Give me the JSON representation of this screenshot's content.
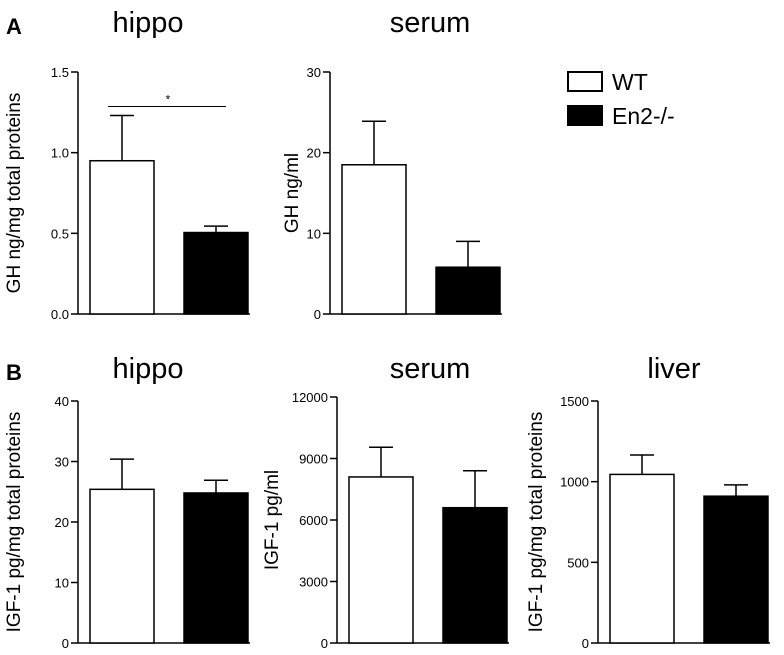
{
  "panels": {
    "a_label": "A",
    "b_label": "B"
  },
  "legend": {
    "items": [
      {
        "label": "WT",
        "fill": "#ffffff"
      },
      {
        "label": "En2-/-",
        "fill": "#000000"
      }
    ]
  },
  "colors": {
    "wt": "#ffffff",
    "ko": "#000000",
    "axis": "#000000"
  },
  "chart_data": [
    {
      "type": "bar",
      "title": "hippo",
      "ylabel": "GH ng/mg total proteins",
      "ylim": [
        0,
        1.5
      ],
      "yticks": [
        "0.0",
        "0.5",
        "1.0",
        "1.5"
      ],
      "categories": [
        "WT",
        "En2-/-"
      ],
      "values": [
        0.95,
        0.505
      ],
      "errors": [
        0.28,
        0.04
      ],
      "significance": "*"
    },
    {
      "type": "bar",
      "title": "serum",
      "ylabel": "GH ng/ml",
      "ylim": [
        0,
        30
      ],
      "yticks": [
        "0",
        "10",
        "20",
        "30"
      ],
      "categories": [
        "WT",
        "En2-/-"
      ],
      "values": [
        18.5,
        5.8
      ],
      "errors": [
        5.4,
        3.2
      ]
    },
    {
      "type": "bar",
      "title": "hippo",
      "ylabel": "IGF-1 pg/mg total proteins",
      "ylim": [
        0,
        40
      ],
      "yticks": [
        "0",
        "10",
        "20",
        "30",
        "40"
      ],
      "categories": [
        "WT",
        "En2-/-"
      ],
      "values": [
        25.4,
        24.8
      ],
      "errors": [
        5.0,
        2.1
      ]
    },
    {
      "type": "bar",
      "title": "serum",
      "ylabel": "IGF-1 pg/ml",
      "ylim": [
        0,
        12000
      ],
      "yticks": [
        "0",
        "3000",
        "6000",
        "9000",
        "12000"
      ],
      "categories": [
        "WT",
        "En2-/-"
      ],
      "values": [
        8100,
        6600
      ],
      "errors": [
        1450,
        1800
      ]
    },
    {
      "type": "bar",
      "title": "liver",
      "ylabel": "IGF-1 pg/mg total proteins",
      "ylim": [
        0,
        1500
      ],
      "yticks": [
        "0",
        "500",
        "1000",
        "1500"
      ],
      "categories": [
        "WT",
        "En2-/-"
      ],
      "values": [
        1045,
        910
      ],
      "errors": [
        120,
        70
      ]
    }
  ]
}
